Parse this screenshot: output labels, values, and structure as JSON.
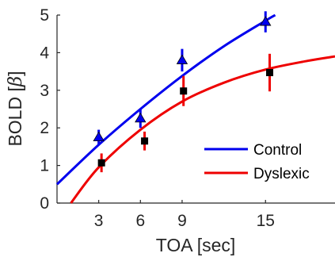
{
  "chart_data": {
    "type": "scatter",
    "title": "",
    "xlabel": "TOA [sec]",
    "ylabel": "BOLD [",
    "ylabel_symbol": "β",
    "ylabel_close": "]",
    "xlim": [
      0,
      20
    ],
    "ylim": [
      0,
      5
    ],
    "xticks": [
      3,
      6,
      9,
      15
    ],
    "yticks": [
      0,
      1,
      2,
      3,
      4,
      5
    ],
    "grid": false,
    "legend_position": "bottom-right",
    "series": [
      {
        "name": "Control",
        "color": "#0000ee",
        "marker": "triangle",
        "points": [
          {
            "x": 3,
            "y": 1.75,
            "err": 0.2
          },
          {
            "x": 6,
            "y": 2.25,
            "err": 0.25
          },
          {
            "x": 9,
            "y": 3.8,
            "err": 0.3
          },
          {
            "x": 15,
            "y": 4.82,
            "err": 0.28
          }
        ],
        "fit": [
          {
            "x": 0,
            "y": 0.5
          },
          {
            "x": 3,
            "y": 1.55
          },
          {
            "x": 6,
            "y": 2.5
          },
          {
            "x": 9,
            "y": 3.38
          },
          {
            "x": 12,
            "y": 4.17
          },
          {
            "x": 15,
            "y": 4.85
          },
          {
            "x": 15.7,
            "y": 5.0
          }
        ]
      },
      {
        "name": "Dyslexic",
        "color": "#ee0000",
        "marker": "square",
        "points": [
          {
            "x": 3.2,
            "y": 1.07,
            "err": 0.25
          },
          {
            "x": 6.3,
            "y": 1.65,
            "err": 0.25
          },
          {
            "x": 9.1,
            "y": 2.98,
            "err": 0.4
          },
          {
            "x": 15.3,
            "y": 3.47,
            "err": 0.5
          }
        ],
        "fit": [
          {
            "x": 1,
            "y": 0.0
          },
          {
            "x": 3,
            "y": 0.95
          },
          {
            "x": 6,
            "y": 1.95
          },
          {
            "x": 9,
            "y": 2.7
          },
          {
            "x": 12,
            "y": 3.2
          },
          {
            "x": 15,
            "y": 3.55
          },
          {
            "x": 18,
            "y": 3.78
          },
          {
            "x": 20,
            "y": 3.9
          }
        ]
      }
    ]
  }
}
